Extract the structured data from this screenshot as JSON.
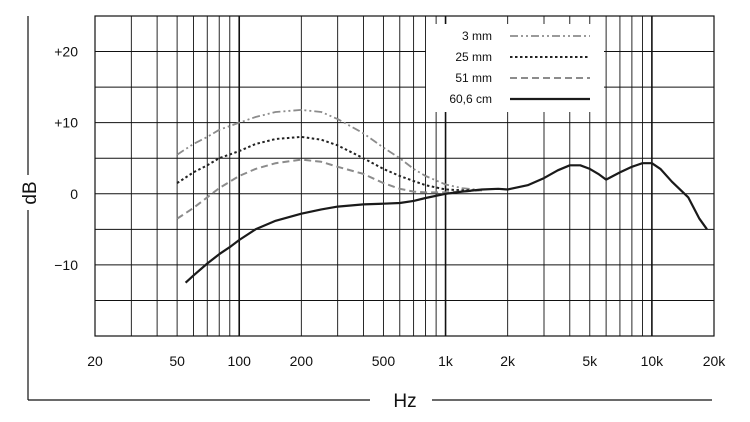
{
  "chart_data": {
    "type": "line",
    "title": "",
    "xlabel": "Hz",
    "ylabel": "dB",
    "xscale": "log",
    "xlim": [
      20,
      20000
    ],
    "ylim": [
      -20,
      25
    ],
    "grid": true,
    "legend_position": "top-right",
    "x_tick_labels": [
      {
        "value": 20,
        "label": "20"
      },
      {
        "value": 50,
        "label": "50"
      },
      {
        "value": 100,
        "label": "100"
      },
      {
        "value": 200,
        "label": "200"
      },
      {
        "value": 500,
        "label": "500"
      },
      {
        "value": 1000,
        "label": "1k"
      },
      {
        "value": 2000,
        "label": "2k"
      },
      {
        "value": 5000,
        "label": "5k"
      },
      {
        "value": 10000,
        "label": "10k"
      },
      {
        "value": 20000,
        "label": "20k"
      }
    ],
    "y_tick_labels": [
      {
        "value": 20,
        "label": "+20"
      },
      {
        "value": 10,
        "label": "+10"
      },
      {
        "value": 0,
        "label": "0"
      },
      {
        "value": -10,
        "label": "−10"
      }
    ],
    "series": [
      {
        "name": "3 mm",
        "color": "#8c8c8c",
        "style": "dash-dot-dot",
        "points": [
          [
            50,
            5.5
          ],
          [
            60,
            7
          ],
          [
            70,
            8
          ],
          [
            80,
            9
          ],
          [
            100,
            10
          ],
          [
            120,
            10.8
          ],
          [
            150,
            11.5
          ],
          [
            200,
            11.8
          ],
          [
            250,
            11.5
          ],
          [
            300,
            10.5
          ],
          [
            400,
            8.5
          ],
          [
            500,
            6.5
          ],
          [
            600,
            5
          ],
          [
            700,
            3.5
          ],
          [
            800,
            2.5
          ],
          [
            1000,
            1.3
          ],
          [
            1200,
            0.8
          ],
          [
            1500,
            0.5
          ]
        ]
      },
      {
        "name": "25 mm",
        "color": "#222222",
        "style": "dotted",
        "points": [
          [
            50,
            1.5
          ],
          [
            60,
            3
          ],
          [
            70,
            4
          ],
          [
            80,
            5
          ],
          [
            100,
            6
          ],
          [
            120,
            7
          ],
          [
            150,
            7.7
          ],
          [
            200,
            8
          ],
          [
            250,
            7.6
          ],
          [
            300,
            6.8
          ],
          [
            400,
            5
          ],
          [
            500,
            3.5
          ],
          [
            600,
            2.5
          ],
          [
            700,
            1.8
          ],
          [
            800,
            1.2
          ],
          [
            1000,
            0.6
          ],
          [
            1200,
            0.5
          ],
          [
            1500,
            0.5
          ]
        ]
      },
      {
        "name": "51 mm",
        "color": "#8c8c8c",
        "style": "dashed",
        "points": [
          [
            50,
            -3.5
          ],
          [
            60,
            -2
          ],
          [
            70,
            -0.5
          ],
          [
            80,
            0.8
          ],
          [
            100,
            2.5
          ],
          [
            120,
            3.5
          ],
          [
            150,
            4.3
          ],
          [
            200,
            4.8
          ],
          [
            250,
            4.5
          ],
          [
            300,
            3.8
          ],
          [
            400,
            2.8
          ],
          [
            500,
            1.5
          ],
          [
            600,
            0.7
          ],
          [
            700,
            0.3
          ],
          [
            800,
            0.2
          ],
          [
            1000,
            0.2
          ],
          [
            1200,
            0.3
          ],
          [
            1500,
            0.5
          ]
        ]
      },
      {
        "name": "60,6 cm",
        "color": "#1a1a1a",
        "style": "solid",
        "points": [
          [
            55,
            -12.5
          ],
          [
            60,
            -11.5
          ],
          [
            70,
            -9.8
          ],
          [
            80,
            -8.5
          ],
          [
            90,
            -7.5
          ],
          [
            100,
            -6.5
          ],
          [
            120,
            -5
          ],
          [
            150,
            -3.8
          ],
          [
            200,
            -2.8
          ],
          [
            250,
            -2.2
          ],
          [
            300,
            -1.8
          ],
          [
            400,
            -1.5
          ],
          [
            500,
            -1.4
          ],
          [
            600,
            -1.3
          ],
          [
            700,
            -1
          ],
          [
            800,
            -0.6
          ],
          [
            1000,
            0
          ],
          [
            1200,
            0.3
          ],
          [
            1500,
            0.6
          ],
          [
            1800,
            0.7
          ],
          [
            2000,
            0.6
          ],
          [
            2500,
            1.2
          ],
          [
            3000,
            2.2
          ],
          [
            3500,
            3.3
          ],
          [
            4000,
            4
          ],
          [
            4500,
            4
          ],
          [
            5000,
            3.5
          ],
          [
            5500,
            2.8
          ],
          [
            6000,
            2
          ],
          [
            7000,
            3
          ],
          [
            8000,
            3.8
          ],
          [
            9000,
            4.3
          ],
          [
            10000,
            4.3
          ],
          [
            11000,
            3.5
          ],
          [
            12500,
            1.7
          ],
          [
            15000,
            -0.5
          ],
          [
            17000,
            -3.5
          ],
          [
            18500,
            -5
          ]
        ]
      }
    ]
  }
}
